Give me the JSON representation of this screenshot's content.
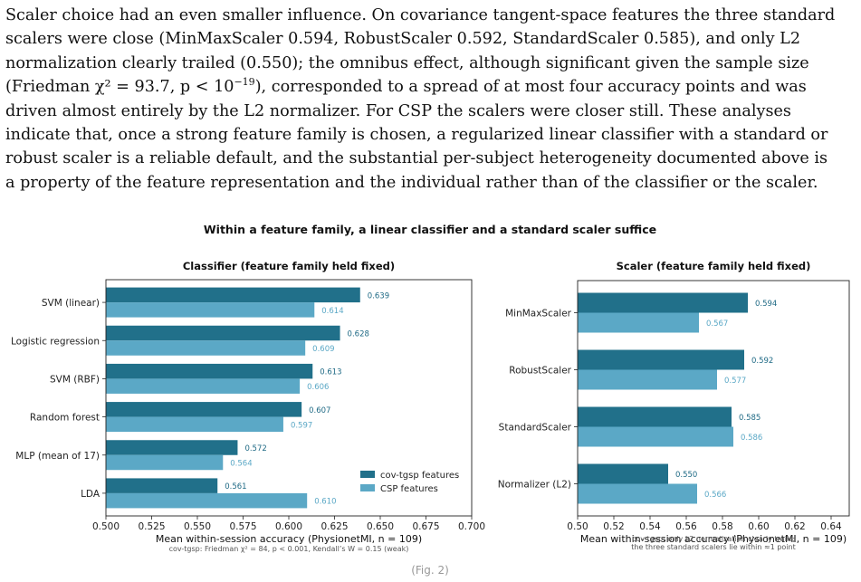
{
  "paragraph": {
    "line1": "Scaler choice had an even smaller influence. On covariance tangent-space features the three standard",
    "line2": "scalers were close (MinMaxScaler 0.594, RobustScaler 0.592, StandardScaler 0.585), and only L2",
    "line3": "normalization clearly trailed (0.550); the omnibus effect, although significant given the sample size",
    "line4a": "(Friedman χ² = 93.7, p < 10",
    "line4sup": "−19",
    "line4b": "), corresponded to a spread of at most four accuracy points and was",
    "line5": "driven almost entirely by the L2 normalizer. For CSP the scalers were closer still. These analyses",
    "line6": "indicate that, once a strong feature family is chosen, a regularized linear classifier with a standard or",
    "line7": "robust scaler is a reliable default, and the substantial per-subject heterogeneity documented above is",
    "line8": "a property of the feature representation and the individual rather than of the classifier or the scaler."
  },
  "figure": {
    "suptitle": "Within a feature family, a linear classifier and a standard scaler suffice",
    "footer": "(Fig. 2)"
  },
  "colors": {
    "cov_tgsp": "#21708a",
    "csp": "#5ba8c6"
  },
  "chart_data": [
    {
      "type": "bar",
      "orientation": "horizontal",
      "title": "Classifier (feature family held fixed)",
      "xlabel": "Mean within-session accuracy (PhysionetMI, n = 109)",
      "xlim": [
        0.5,
        0.7
      ],
      "xticks": [
        "0.500",
        "0.525",
        "0.550",
        "0.575",
        "0.600",
        "0.625",
        "0.650",
        "0.675",
        "0.700"
      ],
      "categories": [
        "SVM (linear)",
        "Logistic regression",
        "SVM (RBF)",
        "Random forest",
        "MLP (mean of 17)",
        "LDA"
      ],
      "series": [
        {
          "name": "cov-tgsp features",
          "values": [
            0.639,
            0.628,
            0.613,
            0.607,
            0.572,
            0.561
          ],
          "labels": [
            "0.639",
            "0.628",
            "0.613",
            "0.607",
            "0.572",
            "0.561"
          ]
        },
        {
          "name": "CSP features",
          "values": [
            0.614,
            0.609,
            0.606,
            0.597,
            0.564,
            0.61
          ],
          "labels": [
            "0.614",
            "0.609",
            "0.606",
            "0.597",
            "0.564",
            "0.610"
          ]
        }
      ],
      "legend": "lower-right",
      "note": "cov-tgsp: Friedman χ² = 84, p < 0.001, Kendall’s W = 0.15 (weak)"
    },
    {
      "type": "bar",
      "orientation": "horizontal",
      "title": "Scaler (feature family held fixed)",
      "xlabel": "Mean within-session accuracy (PhysionetMI, n = 109)",
      "xlim": [
        0.5,
        0.65
      ],
      "xticks": [
        "0.50",
        "0.52",
        "0.54",
        "0.56",
        "0.58",
        "0.60",
        "0.62",
        "0.64"
      ],
      "categories": [
        "MinMaxScaler",
        "RobustScaler",
        "StandardScaler",
        "Normalizer (L2)"
      ],
      "series": [
        {
          "name": "cov-tgsp features",
          "values": [
            0.594,
            0.592,
            0.585,
            0.55
          ],
          "labels": [
            "0.594",
            "0.592",
            "0.585",
            "0.550"
          ]
        },
        {
          "name": "CSP features",
          "values": [
            0.567,
            0.577,
            0.586,
            0.566
          ],
          "labels": [
            "0.567",
            "0.577",
            "0.586",
            "0.566"
          ]
        }
      ],
      "note_lines": [
        "cov-tgsp: only L2 normalization clearly trails;",
        "the three standard scalers lie within ≈1 point"
      ]
    }
  ]
}
